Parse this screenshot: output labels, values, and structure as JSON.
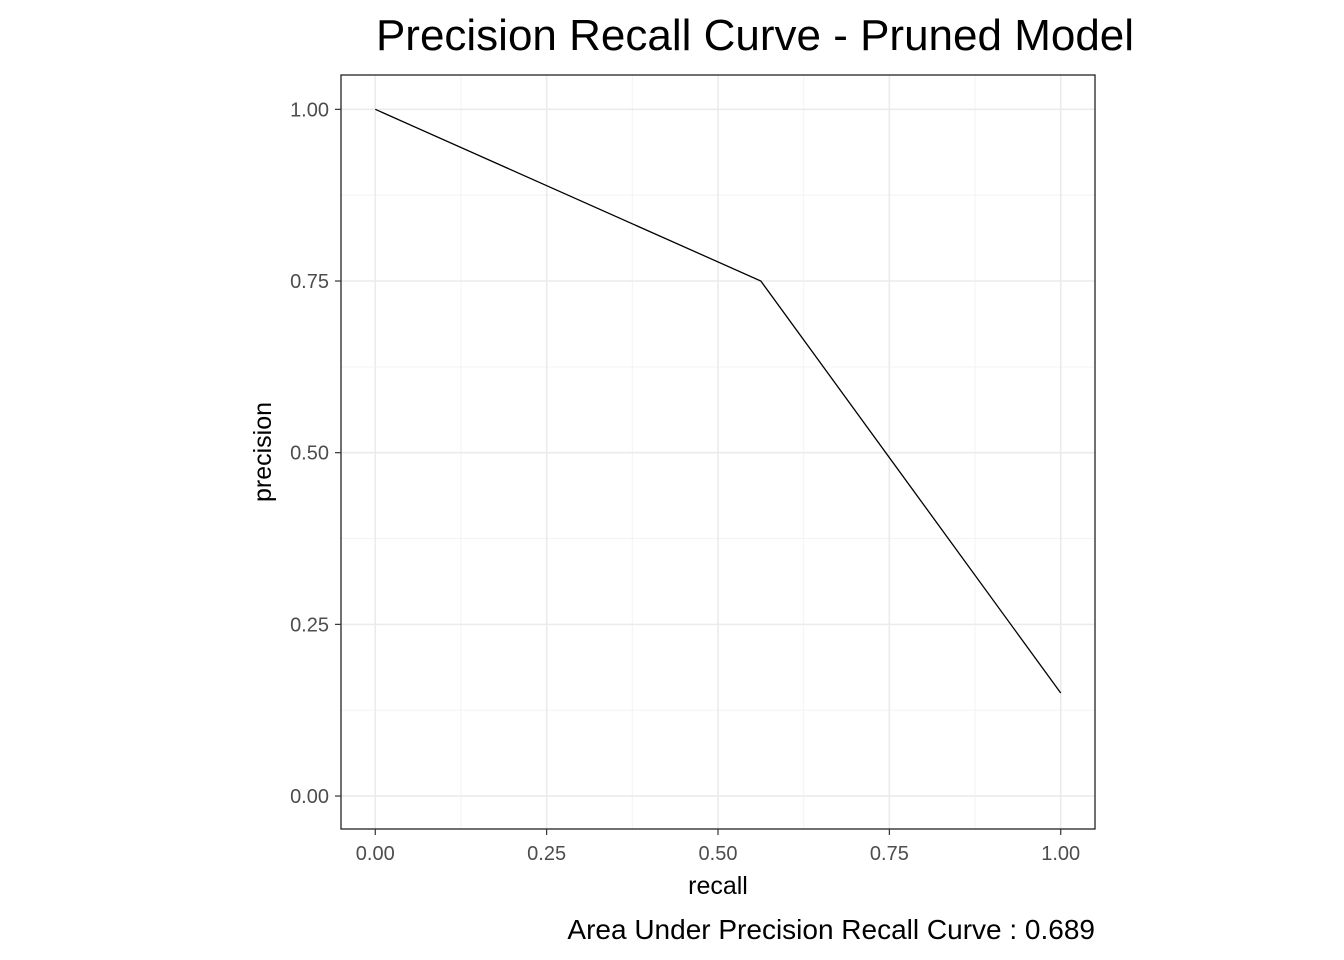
{
  "chart_data": {
    "type": "line",
    "title": "Precision Recall Curve - Pruned Model",
    "xlabel": "recall",
    "ylabel": "precision",
    "caption": "Area Under Precision Recall Curve : 0.689",
    "xlim": [
      -0.05,
      1.05
    ],
    "ylim": [
      -0.048,
      1.05
    ],
    "x_ticks": [
      0,
      0.25,
      0.5,
      0.75,
      1.0
    ],
    "x_tick_labels": [
      "0.00",
      "0.25",
      "0.50",
      "0.75",
      "1.00"
    ],
    "y_ticks": [
      0,
      0.25,
      0.5,
      0.75,
      1.0
    ],
    "y_tick_labels": [
      "0.00",
      "0.25",
      "0.50",
      "0.75",
      "1.00"
    ],
    "x_minor": [
      0.125,
      0.375,
      0.625,
      0.875
    ],
    "y_minor": [
      0.125,
      0.375,
      0.625,
      0.875
    ],
    "grid": true,
    "series": [
      {
        "x": [
          0.0,
          0.5625,
          1.0
        ],
        "y": [
          1.0,
          0.75,
          0.15
        ]
      }
    ]
  }
}
